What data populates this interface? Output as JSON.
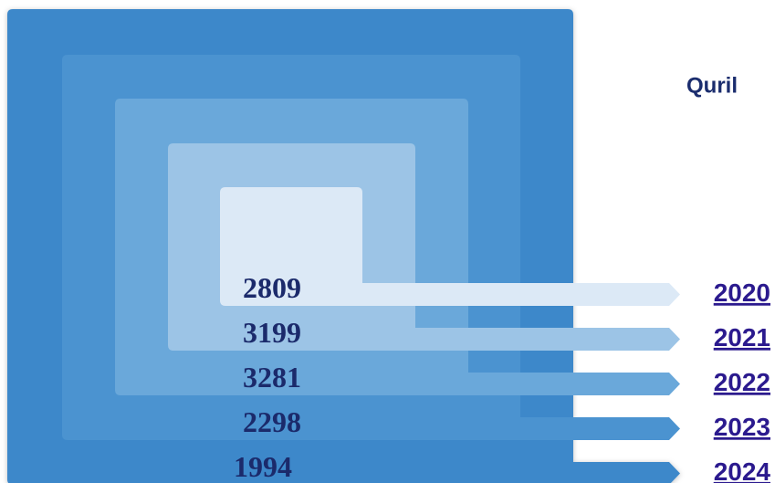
{
  "chart_data": {
    "type": "nested",
    "title": "Quril",
    "categories": [
      "2020",
      "2021",
      "2022",
      "2023",
      "2024"
    ],
    "values": [
      2809,
      3199,
      3281,
      2298,
      1994
    ],
    "colors": [
      "#dce9f6",
      "#9cc4e6",
      "#6aa8da",
      "#4b93d0",
      "#3d88ca"
    ]
  }
}
